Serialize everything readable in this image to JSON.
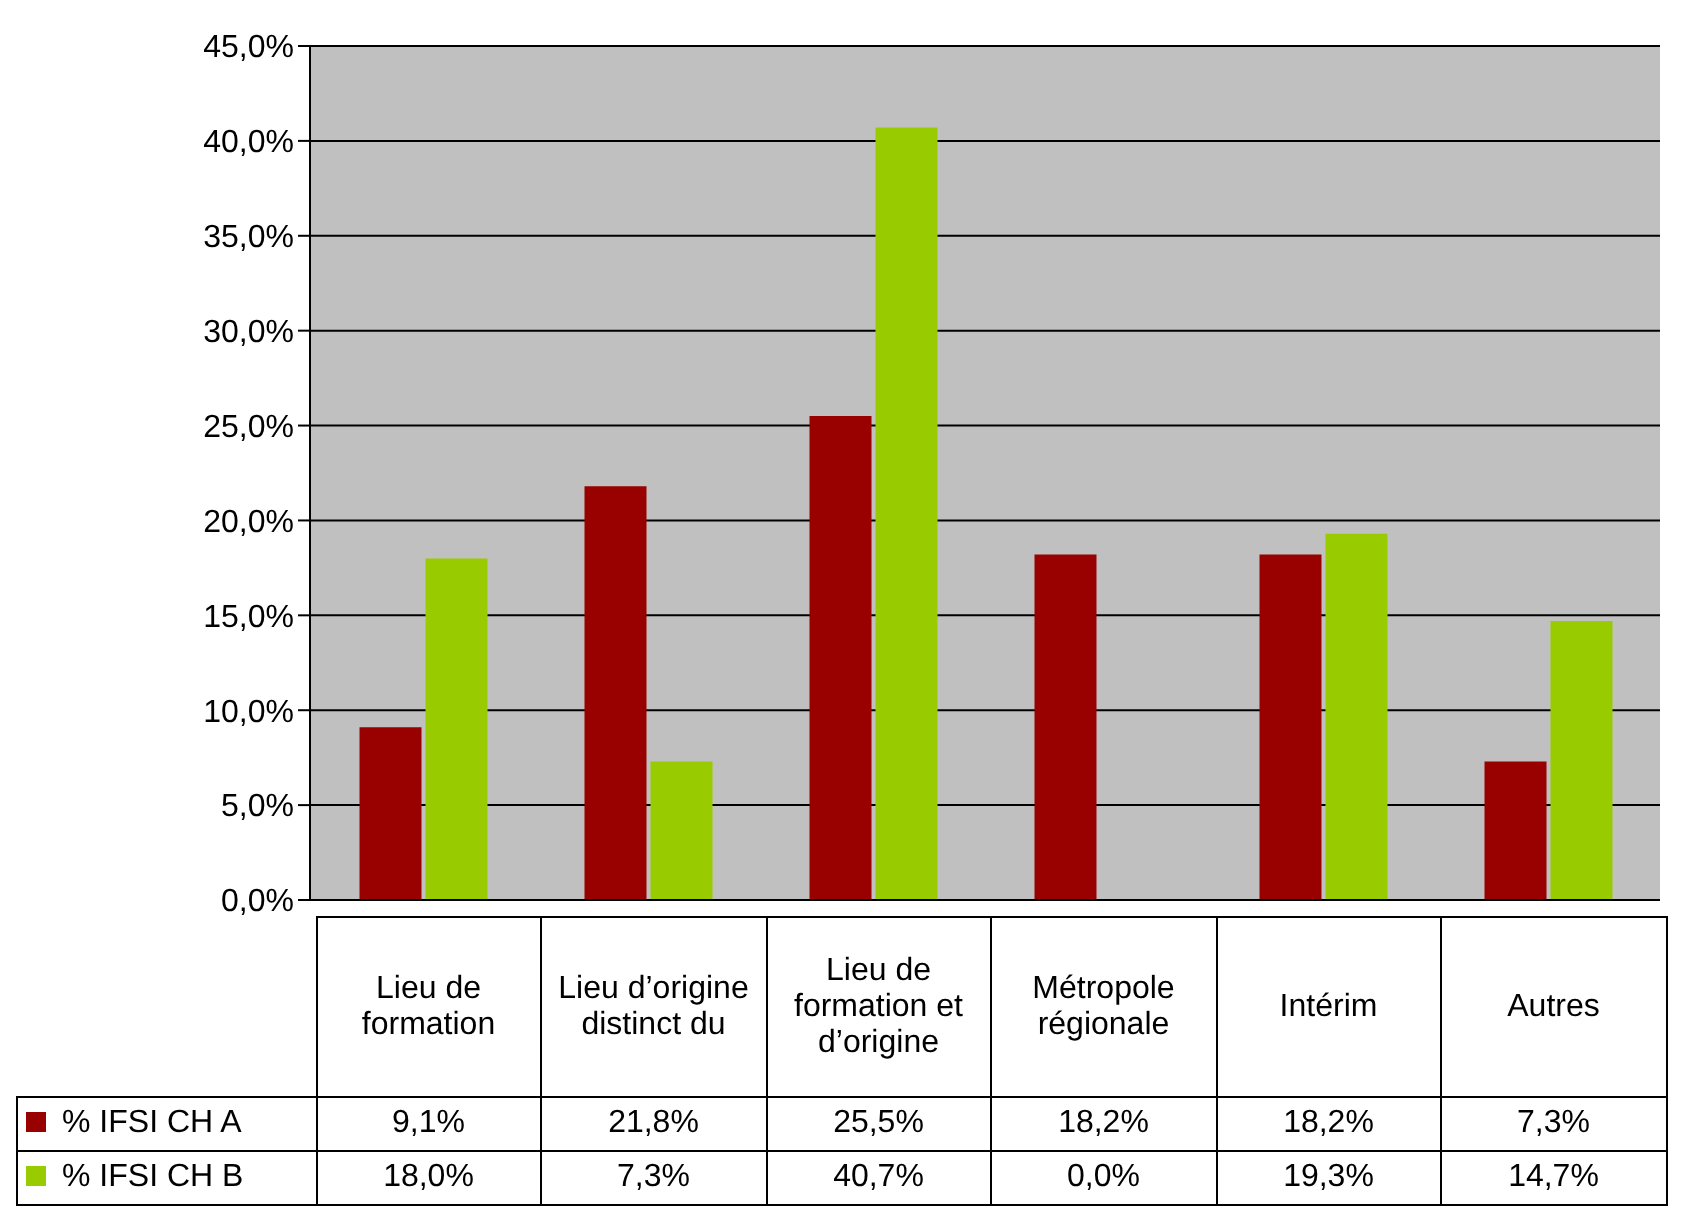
{
  "chart_data": {
    "type": "bar",
    "categories": [
      "Lieu de formation",
      "Lieu d’origine distinct du",
      "Lieu de formation et d’origine",
      "Métropole régionale",
      "Intérim",
      "Autres"
    ],
    "series": [
      {
        "name": "% IFSI CH A",
        "color": "#990000",
        "values": [
          9.1,
          21.8,
          25.5,
          18.2,
          18.2,
          7.3
        ],
        "value_labels": [
          "9,1%",
          "21,8%",
          "25,5%",
          "18,2%",
          "18,2%",
          "7,3%"
        ]
      },
      {
        "name": "% IFSI CH B",
        "color": "#99cc00",
        "values": [
          18.0,
          7.3,
          40.7,
          0.0,
          19.3,
          14.7
        ],
        "value_labels": [
          "18,0%",
          "7,3%",
          "40,7%",
          "0,0%",
          "19,3%",
          "14,7%"
        ]
      }
    ],
    "ylim": [
      0,
      45
    ],
    "yticks": [
      {
        "value": 0,
        "label": "0,0%"
      },
      {
        "value": 5,
        "label": "5,0%"
      },
      {
        "value": 10,
        "label": "10,0%"
      },
      {
        "value": 15,
        "label": "15,0%"
      },
      {
        "value": 20,
        "label": "20,0%"
      },
      {
        "value": 25,
        "label": "25,0%"
      },
      {
        "value": 30,
        "label": "30,0%"
      },
      {
        "value": 35,
        "label": "35,0%"
      },
      {
        "value": 40,
        "label": "40,0%"
      },
      {
        "value": 45,
        "label": "45,0%"
      }
    ],
    "grid": "y",
    "legend": "bottom"
  }
}
